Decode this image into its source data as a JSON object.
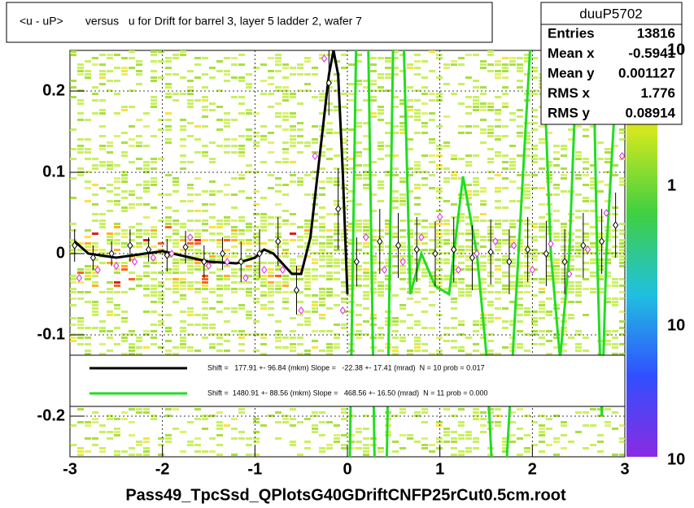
{
  "chart_data": {
    "type": "scatter",
    "title": "<u - uP>       versus   u for Drift for barrel 3, layer 5 ladder 2, wafer 7",
    "x_label": "Pass49_TpcSsd_QPlotsG40GDriftCNFP25rCut0.5cm.root",
    "xlim": [
      -3,
      3
    ],
    "ylim": [
      -0.25,
      0.25
    ],
    "xticks": [
      -3,
      -2,
      -1,
      0,
      1,
      2,
      3
    ],
    "yticks": [
      -0.2,
      -0.1,
      0,
      0.1,
      0.2
    ],
    "grid": true,
    "stats": {
      "name": "duuP5702",
      "rows": [
        [
          "Entries",
          13816
        ],
        [
          "Mean x",
          -0.5941
        ],
        [
          "Mean y",
          0.001127
        ],
        [
          "RMS x",
          1.776
        ],
        [
          "RMS y",
          0.08914
        ]
      ]
    },
    "zlabels": [
      "10",
      "1",
      "10",
      "10"
    ],
    "series": [
      {
        "name": "profile",
        "color": "#000000",
        "x": [
          -2.95,
          -2.75,
          -2.55,
          -2.35,
          -2.15,
          -1.95,
          -1.75,
          -1.55,
          -1.35,
          -1.15,
          -0.95,
          -0.75,
          -0.55,
          -0.2,
          -0.1,
          0.1,
          0.35,
          0.55,
          0.75,
          0.95,
          1.15,
          1.35,
          1.55,
          1.75,
          1.95,
          2.15,
          2.35,
          2.55,
          2.75,
          2.9
        ],
        "values": [
          0.01,
          -0.005,
          0,
          0.01,
          0.005,
          -0.002,
          0.008,
          -0.01,
          0,
          -0.01,
          0,
          0.015,
          -0.045,
          0.21,
          0.055,
          -0.01,
          0.015,
          0.01,
          0.005,
          0,
          0.005,
          -0.005,
          0.002,
          -0.01,
          0.005,
          0,
          -0.01,
          0.01,
          0.015,
          0.035
        ],
        "errors": [
          0.02,
          0.015,
          0.015,
          0.02,
          0.015,
          0.02,
          0.02,
          0.02,
          0.02,
          0.025,
          0.03,
          0.03,
          0.03,
          0.04,
          0.05,
          0.03,
          0.04,
          0.04,
          0.04,
          0.04,
          0.04,
          0.04,
          0.04,
          0.04,
          0.04,
          0.04,
          0.04,
          0.04,
          0.04,
          0.04
        ]
      },
      {
        "name": "mean",
        "color": "#e020e0",
        "x": [
          -2.9,
          -2.7,
          -2.5,
          -2.3,
          -2.1,
          -1.9,
          -1.7,
          -1.5,
          -1.3,
          -1.1,
          -0.9,
          -0.7,
          -0.5,
          -0.35,
          -0.25,
          -0.05,
          0.2,
          0.4,
          0.6,
          0.8,
          1.0,
          1.2,
          1.4,
          1.6,
          1.8,
          2.0,
          2.2,
          2.4,
          2.6,
          2.8,
          2.97
        ],
        "values": [
          -0.03,
          -0.02,
          -0.015,
          -0.01,
          -0.005,
          0,
          0.02,
          -0.015,
          -0.01,
          -0.03,
          -0.02,
          -0.02,
          -0.07,
          0.12,
          0.24,
          -0.07,
          0.02,
          -0.02,
          -0.01,
          0.02,
          0.045,
          -0.02,
          0,
          0.015,
          0.01,
          -0.02,
          0.012,
          -0.025,
          0.005,
          0.05,
          0.12
        ]
      }
    ],
    "fits": [
      {
        "legend": "Shift =   177.91 +- 96.84 (mkm) Slope =   -22.38 +- 17.41 (mrad)  N = 10 prob = 0.017",
        "color": "#000000",
        "x": [
          -2.95,
          -2.8,
          -2.5,
          -2.0,
          -1.5,
          -1.2,
          -1.0,
          -0.9,
          -0.8,
          -0.6,
          -0.5,
          -0.4,
          -0.3,
          -0.2,
          -0.15,
          -0.1,
          -0.05,
          0.0
        ],
        "values": [
          0.015,
          0,
          -0.005,
          0.003,
          -0.01,
          -0.012,
          -0.005,
          0.005,
          0,
          -0.025,
          -0.025,
          0.02,
          0.12,
          0.22,
          0.25,
          0.22,
          0.1,
          -0.05
        ]
      },
      {
        "legend": "Shift =  1480.91 +- 88.56 (mkm) Slope =   468.56 +- 16.50 (mrad)  N = 11 prob = 0.000",
        "color": "#22dd22",
        "x": [
          0.02,
          0.1,
          0.22,
          0.3,
          0.42,
          0.5,
          0.6,
          0.68,
          0.8,
          0.95,
          1.1,
          1.25,
          1.4,
          1.5,
          1.58,
          1.7,
          1.85,
          2.0,
          2.1,
          2.2,
          2.3,
          2.4,
          2.5,
          2.65,
          2.7,
          2.75,
          2.8,
          2.9,
          3.0
        ],
        "values": [
          -0.3,
          0.3,
          0.3,
          -0.3,
          -0.3,
          0.3,
          0.3,
          -0.05,
          0,
          -0.04,
          -0.05,
          0.095,
          0,
          -0.12,
          -0.3,
          -0.3,
          0,
          0.3,
          0.3,
          0,
          -0.13,
          0,
          0.3,
          0.3,
          0,
          -0.2,
          0,
          0.2,
          0.3
        ]
      }
    ]
  }
}
